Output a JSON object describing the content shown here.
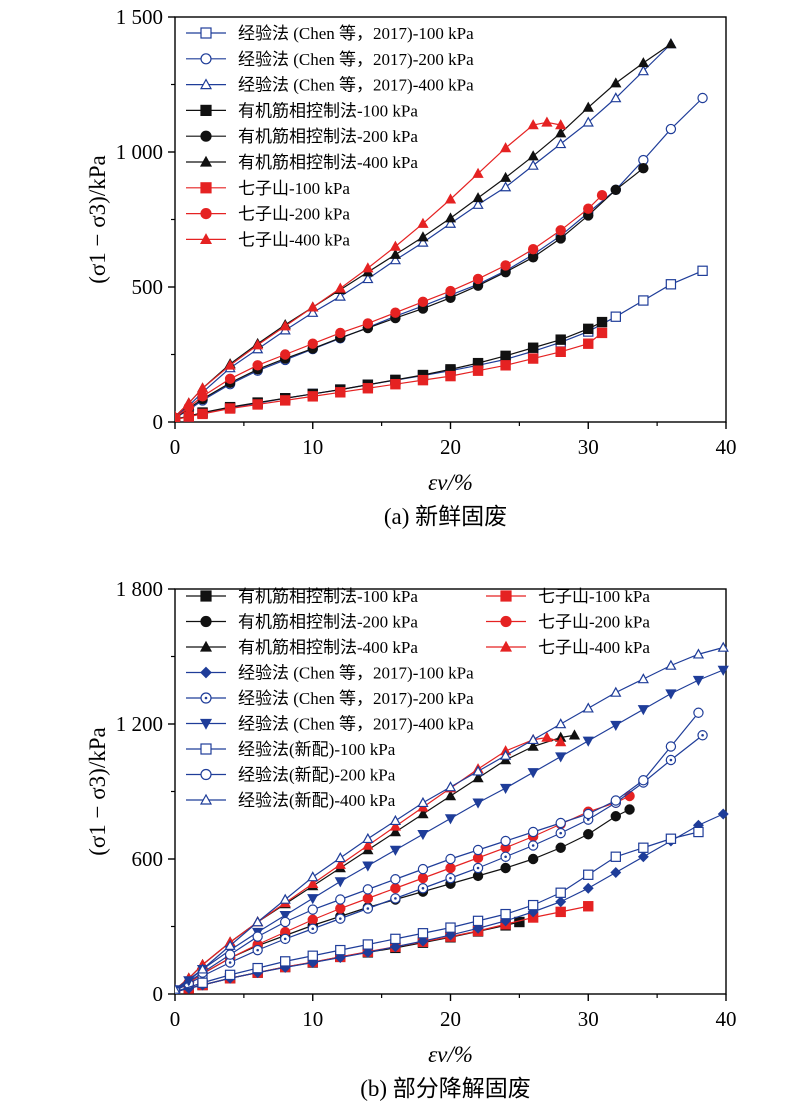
{
  "chart_data": [
    {
      "type": "line",
      "caption": "(a) 新鲜固废",
      "xlabel": "εv/%",
      "ylabel": "(σ1 − σ3)/kPa",
      "xlim": [
        0,
        40
      ],
      "ylim": [
        0,
        1500
      ],
      "xticks": [
        "0",
        "10",
        "20",
        "30",
        "40"
      ],
      "yticks": [
        "0",
        "500",
        "1 000",
        "1 500"
      ],
      "legend_position": "top-left",
      "series": [
        {
          "name": "经验法 (Chen 等，2017)-100 kPa",
          "color": "#1f3d99",
          "marker": "square-open",
          "x": [
            0,
            1,
            2,
            4,
            6,
            8,
            10,
            12,
            14,
            16,
            18,
            20,
            22,
            24,
            26,
            28,
            30,
            32,
            34,
            36,
            38.3
          ],
          "y": [
            10,
            20,
            32,
            52,
            70,
            88,
            104,
            120,
            138,
            155,
            172,
            190,
            210,
            232,
            262,
            295,
            335,
            390,
            450,
            510,
            560
          ]
        },
        {
          "name": "经验法 (Chen 等，2017)-200 kPa",
          "color": "#1f3d99",
          "marker": "circle-open",
          "x": [
            0,
            1,
            2,
            4,
            6,
            8,
            10,
            12,
            14,
            16,
            18,
            20,
            22,
            24,
            26,
            28,
            30,
            32,
            34,
            36,
            38.3
          ],
          "y": [
            15,
            45,
            80,
            140,
            190,
            230,
            270,
            310,
            350,
            392,
            430,
            470,
            510,
            560,
            620,
            690,
            775,
            860,
            970,
            1085,
            1200
          ]
        },
        {
          "name": "经验法 (Chen 等，2017)-400 kPa",
          "color": "#1f3d99",
          "marker": "triangle-open",
          "x": [
            0,
            1,
            2,
            4,
            6,
            8,
            10,
            12,
            14,
            16,
            18,
            20,
            22,
            24,
            26,
            28,
            30,
            32,
            34,
            36
          ],
          "y": [
            20,
            60,
            110,
            200,
            270,
            340,
            405,
            465,
            530,
            600,
            665,
            735,
            805,
            870,
            950,
            1030,
            1110,
            1200,
            1300,
            1400
          ]
        },
        {
          "name": "有机筋相控制法-100 kPa",
          "color": "#111111",
          "marker": "square-filled",
          "x": [
            0,
            1,
            2,
            4,
            6,
            8,
            10,
            12,
            14,
            16,
            18,
            20,
            22,
            24,
            26,
            28,
            30,
            31
          ],
          "y": [
            10,
            22,
            35,
            55,
            72,
            88,
            104,
            120,
            138,
            156,
            174,
            195,
            218,
            245,
            275,
            305,
            345,
            370
          ]
        },
        {
          "name": "有机筋相控制法-200 kPa",
          "color": "#111111",
          "marker": "circle-filled",
          "x": [
            0,
            1,
            2,
            4,
            6,
            8,
            10,
            12,
            14,
            16,
            18,
            20,
            22,
            24,
            26,
            28,
            30,
            32,
            34
          ],
          "y": [
            15,
            50,
            85,
            145,
            195,
            235,
            272,
            312,
            348,
            385,
            420,
            460,
            505,
            555,
            610,
            680,
            765,
            860,
            940
          ]
        },
        {
          "name": "有机筋相控制法-400 kPa",
          "color": "#111111",
          "marker": "triangle-filled",
          "x": [
            0,
            1,
            2,
            4,
            6,
            8,
            10,
            12,
            14,
            16,
            18,
            20,
            22,
            24,
            26,
            28,
            30,
            32,
            34,
            36
          ],
          "y": [
            20,
            70,
            125,
            215,
            290,
            360,
            425,
            490,
            555,
            620,
            685,
            755,
            830,
            905,
            985,
            1070,
            1165,
            1255,
            1330,
            1400
          ]
        },
        {
          "name": "七子山-100 kPa",
          "color": "#e52222",
          "marker": "square-filled",
          "x": [
            0,
            1,
            2,
            4,
            6,
            8,
            10,
            12,
            14,
            16,
            18,
            20,
            22,
            24,
            26,
            28,
            30,
            31
          ],
          "y": [
            8,
            20,
            30,
            50,
            65,
            80,
            95,
            110,
            125,
            140,
            155,
            170,
            190,
            210,
            235,
            260,
            290,
            330
          ]
        },
        {
          "name": "七子山-200 kPa",
          "color": "#e52222",
          "marker": "circle-filled",
          "x": [
            0,
            1,
            2,
            4,
            6,
            8,
            10,
            12,
            14,
            16,
            18,
            20,
            22,
            24,
            26,
            28,
            30,
            31
          ],
          "y": [
            15,
            55,
            95,
            160,
            210,
            250,
            290,
            330,
            365,
            405,
            445,
            485,
            530,
            580,
            640,
            710,
            790,
            840
          ]
        },
        {
          "name": "七子山-400 kPa",
          "color": "#e52222",
          "marker": "triangle-filled",
          "x": [
            0,
            1,
            2,
            4,
            6,
            8,
            10,
            12,
            14,
            16,
            18,
            20,
            22,
            24,
            26,
            27,
            28
          ],
          "y": [
            20,
            70,
            125,
            210,
            285,
            355,
            425,
            495,
            570,
            650,
            735,
            825,
            920,
            1015,
            1100,
            1110,
            1100
          ]
        }
      ]
    },
    {
      "type": "line",
      "caption": "(b) 部分降解固废",
      "xlabel": "εv/%",
      "ylabel": "(σ1 − σ3)/kPa",
      "xlim": [
        0,
        40
      ],
      "ylim": [
        0,
        1800
      ],
      "xticks": [
        "0",
        "10",
        "20",
        "30",
        "40"
      ],
      "yticks": [
        "0",
        "600",
        "1 200",
        "1 800"
      ],
      "legend_position": "top-left",
      "series": [
        {
          "name": "有机筋相控制法-100 kPa",
          "color": "#111111",
          "marker": "square-filled",
          "x": [
            0,
            1,
            2,
            4,
            6,
            8,
            10,
            12,
            14,
            16,
            18,
            20,
            22,
            24,
            25
          ],
          "y": [
            10,
            25,
            40,
            70,
            95,
            120,
            140,
            165,
            185,
            205,
            228,
            252,
            278,
            305,
            320
          ]
        },
        {
          "name": "有机筋相控制法-200 kPa",
          "color": "#111111",
          "marker": "circle-filled",
          "x": [
            0,
            1,
            2,
            4,
            6,
            8,
            10,
            12,
            14,
            16,
            18,
            20,
            22,
            24,
            26,
            28,
            30,
            32,
            33
          ],
          "y": [
            15,
            50,
            90,
            160,
            215,
            260,
            305,
            345,
            385,
            420,
            455,
            490,
            525,
            560,
            600,
            650,
            710,
            790,
            820
          ]
        },
        {
          "name": "有机筋相控制法-400 kPa",
          "color": "#111111",
          "marker": "triangle-filled",
          "x": [
            0,
            1,
            2,
            4,
            6,
            8,
            10,
            12,
            14,
            16,
            18,
            20,
            22,
            24,
            26,
            28,
            29
          ],
          "y": [
            20,
            70,
            130,
            230,
            320,
            400,
            480,
            560,
            640,
            720,
            800,
            880,
            960,
            1040,
            1100,
            1140,
            1150
          ]
        },
        {
          "name": "七子山-100 kPa",
          "color": "#e52222",
          "marker": "square-filled",
          "x": [
            0,
            1,
            2,
            4,
            6,
            8,
            10,
            12,
            14,
            16,
            18,
            20,
            22,
            24,
            26,
            28,
            30
          ],
          "y": [
            10,
            25,
            40,
            70,
            95,
            120,
            142,
            165,
            188,
            210,
            232,
            255,
            280,
            310,
            340,
            365,
            390
          ]
        },
        {
          "name": "七子山-200 kPa",
          "color": "#e52222",
          "marker": "circle-filled",
          "x": [
            0,
            1,
            2,
            4,
            6,
            8,
            10,
            12,
            14,
            16,
            18,
            20,
            22,
            24,
            26,
            28,
            30,
            32,
            33
          ],
          "y": [
            15,
            50,
            90,
            160,
            220,
            275,
            330,
            380,
            425,
            470,
            515,
            560,
            605,
            650,
            700,
            755,
            810,
            850,
            880
          ]
        },
        {
          "name": "七子山-400 kPa",
          "color": "#e52222",
          "marker": "triangle-filled",
          "x": [
            0,
            1,
            2,
            4,
            6,
            8,
            10,
            12,
            14,
            16,
            18,
            20,
            22,
            24,
            26,
            27,
            28
          ],
          "y": [
            20,
            70,
            130,
            230,
            320,
            405,
            490,
            575,
            660,
            745,
            830,
            915,
            1000,
            1080,
            1130,
            1140,
            1120
          ]
        },
        {
          "name": "经验法 (Chen 等，2017)-100 kPa",
          "color": "#1f3d99",
          "marker": "diamond-filled",
          "x": [
            0,
            1,
            2,
            4,
            6,
            8,
            10,
            12,
            14,
            16,
            18,
            20,
            22,
            24,
            26,
            28,
            30,
            32,
            34,
            36,
            38,
            39.8
          ],
          "y": [
            10,
            25,
            40,
            70,
            95,
            118,
            140,
            162,
            185,
            210,
            235,
            262,
            292,
            325,
            365,
            410,
            470,
            540,
            610,
            680,
            750,
            800
          ]
        },
        {
          "name": "经验法 (Chen 等，2017)-200 kPa",
          "color": "#1f3d99",
          "marker": "circle-dot",
          "x": [
            0,
            1,
            2,
            4,
            6,
            8,
            10,
            12,
            14,
            16,
            18,
            20,
            22,
            24,
            26,
            28,
            30,
            32,
            34,
            36,
            38.3
          ],
          "y": [
            15,
            45,
            80,
            140,
            195,
            245,
            290,
            335,
            380,
            425,
            470,
            515,
            560,
            610,
            660,
            715,
            775,
            850,
            940,
            1040,
            1150
          ]
        },
        {
          "name": "经验法 (Chen 等，2017)-400 kPa",
          "color": "#1f3d99",
          "marker": "triangle-down-filled",
          "x": [
            0,
            1,
            2,
            4,
            6,
            8,
            10,
            12,
            14,
            16,
            18,
            20,
            22,
            24,
            26,
            28,
            30,
            32,
            34,
            36,
            38,
            39.8
          ],
          "y": [
            20,
            60,
            110,
            195,
            275,
            350,
            425,
            500,
            570,
            640,
            710,
            780,
            850,
            915,
            985,
            1055,
            1125,
            1195,
            1265,
            1335,
            1395,
            1440
          ]
        },
        {
          "name": "经验法(新配)-100 kPa",
          "color": "#1f3d99",
          "marker": "square-open",
          "x": [
            0,
            2,
            4,
            6,
            8,
            10,
            12,
            14,
            16,
            18,
            20,
            22,
            24,
            26,
            28,
            30,
            32,
            34,
            36,
            38
          ],
          "y": [
            10,
            50,
            85,
            115,
            145,
            170,
            195,
            220,
            245,
            270,
            295,
            325,
            355,
            395,
            450,
            530,
            610,
            650,
            690,
            720
          ]
        },
        {
          "name": "经验法(新配)-200 kPa",
          "color": "#1f3d99",
          "marker": "circle-open",
          "x": [
            0,
            2,
            4,
            6,
            8,
            10,
            12,
            14,
            16,
            18,
            20,
            22,
            24,
            26,
            28,
            30,
            32,
            34,
            36,
            38
          ],
          "y": [
            15,
            95,
            175,
            255,
            320,
            375,
            420,
            465,
            510,
            555,
            600,
            640,
            680,
            720,
            760,
            800,
            860,
            950,
            1100,
            1250
          ]
        },
        {
          "name": "经验法(新配)-400 kPa",
          "color": "#1f3d99",
          "marker": "triangle-open",
          "x": [
            0,
            2,
            4,
            6,
            8,
            10,
            12,
            14,
            16,
            18,
            20,
            22,
            24,
            26,
            28,
            30,
            32,
            34,
            36,
            38,
            39.8
          ],
          "y": [
            20,
            110,
            215,
            320,
            420,
            520,
            605,
            690,
            770,
            850,
            920,
            990,
            1060,
            1130,
            1200,
            1270,
            1340,
            1400,
            1460,
            1510,
            1540
          ]
        }
      ]
    }
  ]
}
